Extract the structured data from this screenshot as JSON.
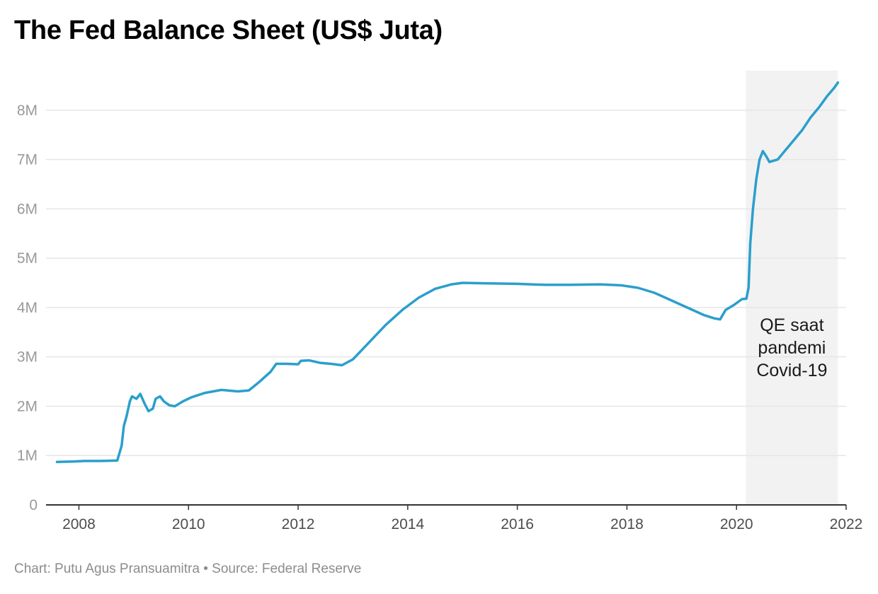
{
  "footer": {
    "credit": "Chart: Putu Agus Pransuamitra",
    "separator": " • ",
    "source": "Source: Federal Reserve"
  },
  "colors": {
    "line": "#2a9fcc",
    "grid": "#e6e6e6",
    "axis": "#333333",
    "shade": "#f2f2f2"
  },
  "chart_data": {
    "type": "line",
    "title": "The Fed Balance Sheet (US$ Juta)",
    "xlabel": "",
    "ylabel": "",
    "xlim": [
      2007.4,
      2022.0
    ],
    "ylim": [
      0,
      8800000
    ],
    "x_ticks": [
      2008,
      2010,
      2012,
      2014,
      2016,
      2018,
      2020,
      2022
    ],
    "y_ticks": [
      {
        "value": 0,
        "label": "0"
      },
      {
        "value": 1000000,
        "label": "1M"
      },
      {
        "value": 2000000,
        "label": "2M"
      },
      {
        "value": 3000000,
        "label": "3M"
      },
      {
        "value": 4000000,
        "label": "4M"
      },
      {
        "value": 5000000,
        "label": "5M"
      },
      {
        "value": 6000000,
        "label": "6M"
      },
      {
        "value": 7000000,
        "label": "7M"
      },
      {
        "value": 8000000,
        "label": "8M"
      }
    ],
    "grid": true,
    "legend": "none",
    "shaded_region": {
      "x_start": 2020.17,
      "x_end": 2021.85,
      "label_lines": [
        "QE saat",
        "pandemi",
        "Covid-19"
      ]
    },
    "series": [
      {
        "points": [
          [
            2007.6,
            870000
          ],
          [
            2007.9,
            880000
          ],
          [
            2008.1,
            890000
          ],
          [
            2008.4,
            890000
          ],
          [
            2008.7,
            900000
          ],
          [
            2008.78,
            1200000
          ],
          [
            2008.82,
            1600000
          ],
          [
            2008.87,
            1800000
          ],
          [
            2008.93,
            2100000
          ],
          [
            2008.97,
            2200000
          ],
          [
            2009.05,
            2150000
          ],
          [
            2009.12,
            2250000
          ],
          [
            2009.2,
            2050000
          ],
          [
            2009.27,
            1900000
          ],
          [
            2009.35,
            1950000
          ],
          [
            2009.4,
            2150000
          ],
          [
            2009.48,
            2200000
          ],
          [
            2009.55,
            2100000
          ],
          [
            2009.65,
            2020000
          ],
          [
            2009.75,
            2000000
          ],
          [
            2009.9,
            2100000
          ],
          [
            2010.05,
            2180000
          ],
          [
            2010.3,
            2270000
          ],
          [
            2010.6,
            2330000
          ],
          [
            2010.9,
            2300000
          ],
          [
            2011.1,
            2320000
          ],
          [
            2011.3,
            2500000
          ],
          [
            2011.5,
            2700000
          ],
          [
            2011.6,
            2860000
          ],
          [
            2011.8,
            2860000
          ],
          [
            2012.0,
            2850000
          ],
          [
            2012.05,
            2920000
          ],
          [
            2012.2,
            2930000
          ],
          [
            2012.4,
            2880000
          ],
          [
            2012.6,
            2860000
          ],
          [
            2012.8,
            2830000
          ],
          [
            2013.0,
            2950000
          ],
          [
            2013.3,
            3300000
          ],
          [
            2013.6,
            3650000
          ],
          [
            2013.9,
            3950000
          ],
          [
            2014.2,
            4200000
          ],
          [
            2014.5,
            4380000
          ],
          [
            2014.8,
            4470000
          ],
          [
            2015.0,
            4500000
          ],
          [
            2015.5,
            4490000
          ],
          [
            2016.0,
            4480000
          ],
          [
            2016.5,
            4460000
          ],
          [
            2017.0,
            4460000
          ],
          [
            2017.5,
            4470000
          ],
          [
            2017.9,
            4450000
          ],
          [
            2018.2,
            4400000
          ],
          [
            2018.5,
            4300000
          ],
          [
            2018.8,
            4150000
          ],
          [
            2019.1,
            4000000
          ],
          [
            2019.4,
            3850000
          ],
          [
            2019.6,
            3780000
          ],
          [
            2019.7,
            3760000
          ],
          [
            2019.8,
            3950000
          ],
          [
            2019.95,
            4050000
          ],
          [
            2020.1,
            4170000
          ],
          [
            2020.18,
            4180000
          ],
          [
            2020.22,
            4400000
          ],
          [
            2020.25,
            5300000
          ],
          [
            2020.3,
            6000000
          ],
          [
            2020.36,
            6600000
          ],
          [
            2020.42,
            7000000
          ],
          [
            2020.48,
            7170000
          ],
          [
            2020.55,
            7050000
          ],
          [
            2020.6,
            6950000
          ],
          [
            2020.75,
            7000000
          ],
          [
            2020.9,
            7200000
          ],
          [
            2021.05,
            7400000
          ],
          [
            2021.2,
            7600000
          ],
          [
            2021.35,
            7850000
          ],
          [
            2021.5,
            8050000
          ],
          [
            2021.65,
            8280000
          ],
          [
            2021.78,
            8450000
          ],
          [
            2021.85,
            8560000
          ]
        ]
      }
    ]
  }
}
